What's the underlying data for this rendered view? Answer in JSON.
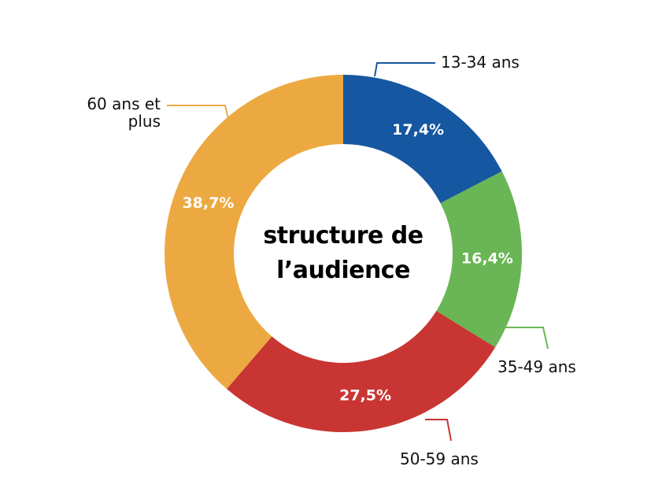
{
  "chart_data": {
    "type": "donut",
    "title": "structure de l’audience",
    "categories": [
      "13-34 ans",
      "35-49 ans",
      "50-59 ans",
      "60 ans et plus"
    ],
    "values": [
      17.4,
      16.4,
      27.5,
      38.7
    ],
    "value_labels": [
      "17,4%",
      "16,4%",
      "27,5%",
      "38,7%"
    ],
    "colors": [
      "#1557a0",
      "#6ab555",
      "#c93532",
      "#eca942"
    ]
  }
}
